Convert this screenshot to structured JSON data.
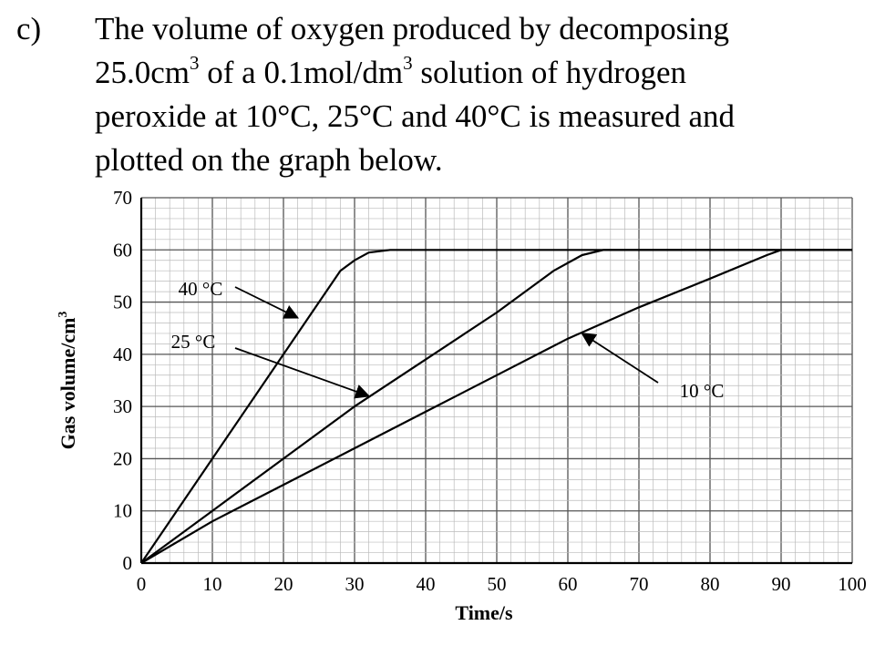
{
  "question": {
    "label": "c)",
    "line1": "The volume of oxygen produced by decomposing",
    "line2_a": "25.0cm",
    "line2_sup1": "3",
    "line2_b": " of a 0.1mol/dm",
    "line2_sup2": "3",
    "line2_c": " solution of hydrogen",
    "line3": "peroxide at 10°C, 25°C and 40°C is measured and",
    "line4": "plotted on the graph below."
  },
  "chart_data": {
    "type": "line",
    "title": "",
    "xlabel": "Time/s",
    "ylabel": "Gas volume/cm",
    "ylabel_sup": "3",
    "xlim": [
      0,
      100
    ],
    "ylim": [
      0,
      70
    ],
    "x_ticks": [
      "0",
      "10",
      "20",
      "30",
      "40",
      "50",
      "60",
      "70",
      "80",
      "90",
      "100"
    ],
    "y_ticks": [
      "0",
      "10",
      "20",
      "30",
      "40",
      "50",
      "60",
      "70"
    ],
    "grid": true,
    "series": [
      {
        "name": "40 °C",
        "points": [
          [
            0,
            0
          ],
          [
            10,
            20
          ],
          [
            20,
            40
          ],
          [
            28,
            56
          ],
          [
            30,
            58
          ],
          [
            32,
            59.5
          ],
          [
            35,
            60
          ],
          [
            100,
            60
          ]
        ]
      },
      {
        "name": "25 °C",
        "points": [
          [
            0,
            0
          ],
          [
            10,
            10
          ],
          [
            20,
            20
          ],
          [
            30,
            30
          ],
          [
            40,
            39
          ],
          [
            50,
            48
          ],
          [
            58,
            56
          ],
          [
            62,
            59
          ],
          [
            65,
            60
          ],
          [
            100,
            60
          ]
        ]
      },
      {
        "name": "10 °C",
        "points": [
          [
            0,
            0
          ],
          [
            10,
            8
          ],
          [
            20,
            15
          ],
          [
            30,
            22
          ],
          [
            40,
            29
          ],
          [
            50,
            36
          ],
          [
            60,
            43
          ],
          [
            70,
            49
          ],
          [
            80,
            54.5
          ],
          [
            88,
            59
          ],
          [
            90,
            60
          ],
          [
            100,
            60
          ]
        ]
      }
    ],
    "annotations": [
      {
        "label": "40 °C",
        "target": [
          22,
          47
        ]
      },
      {
        "label": "25 °C",
        "target": [
          32,
          32
        ]
      },
      {
        "label": "10 °C",
        "target": [
          62,
          44
        ]
      }
    ]
  }
}
